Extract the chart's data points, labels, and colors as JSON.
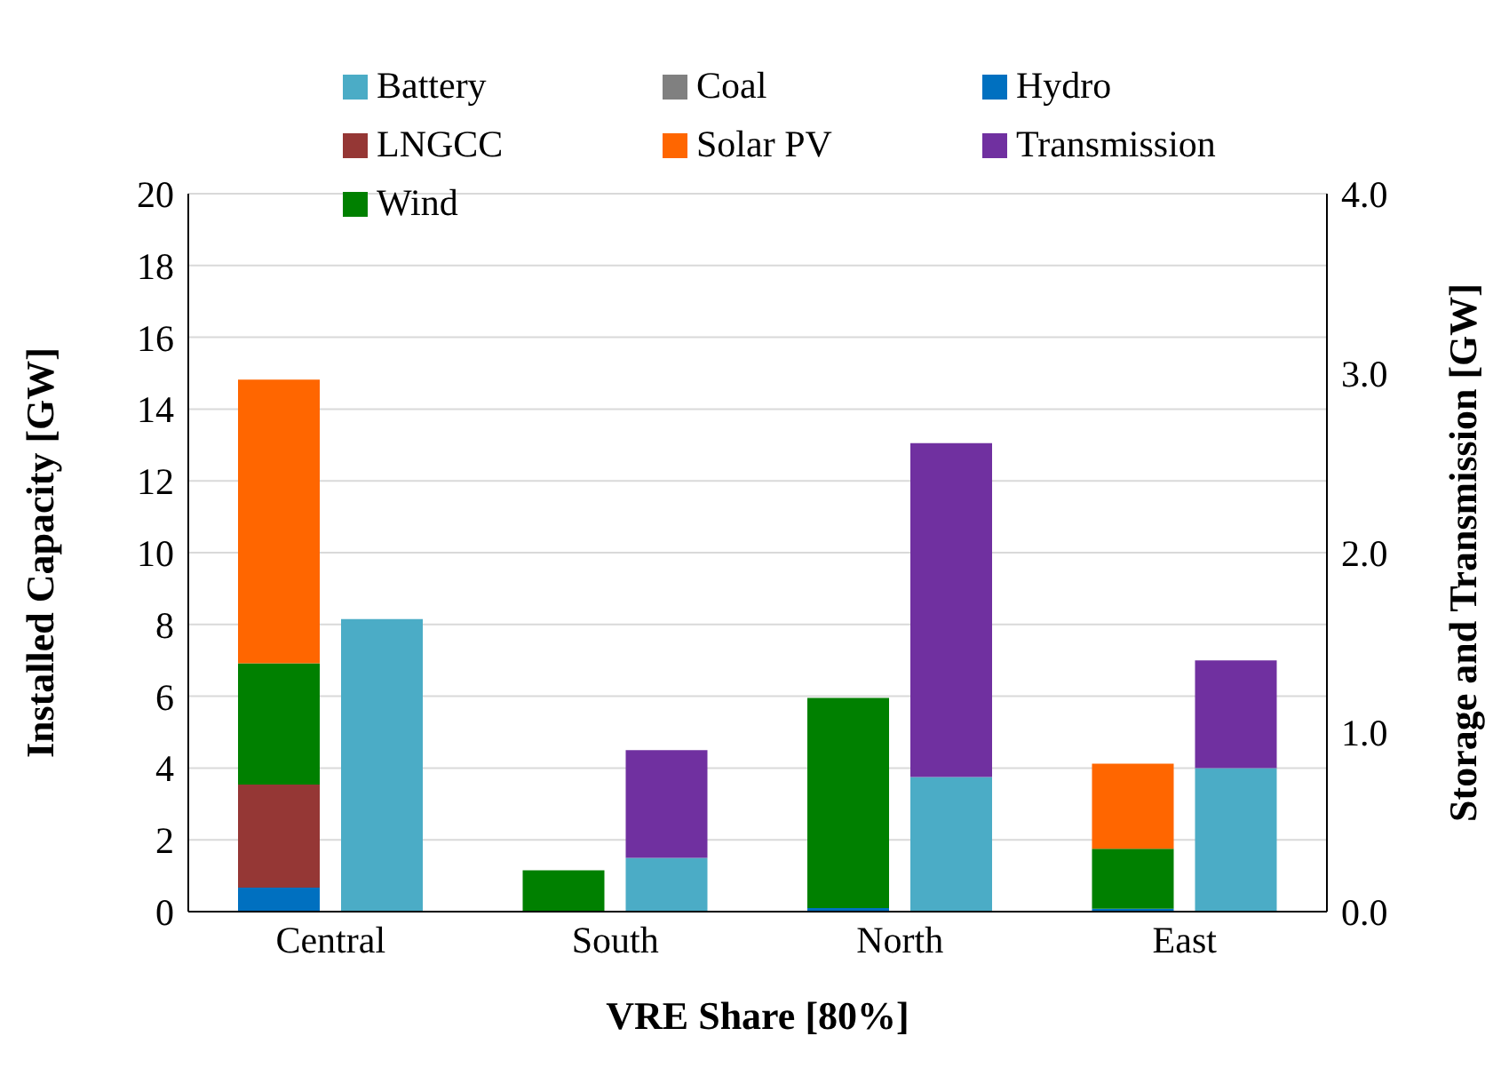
{
  "chart_data": {
    "type": "bar",
    "stacked": true,
    "xlabel": "VRE Share [80%]",
    "ylabel": "Installed Capacity [GW]",
    "y2label": "Storage and Transmission [GW]",
    "categories": [
      "Central",
      "South",
      "North",
      "East"
    ],
    "series": [
      {
        "name": "Hydro",
        "color": "#0070c0",
        "values": [
          0.67,
          0,
          0.1,
          0.08
        ]
      },
      {
        "name": "Coal",
        "color": "#808080",
        "values": [
          0,
          0,
          0,
          0
        ]
      },
      {
        "name": "LNGCC",
        "color": "#953735",
        "values": [
          2.87,
          0,
          0,
          0
        ]
      },
      {
        "name": "Wind",
        "color": "#008000",
        "values": [
          3.38,
          1.15,
          5.85,
          1.67
        ]
      },
      {
        "name": "Solar PV",
        "color": "#ff6600",
        "values": [
          7.9,
          0,
          0,
          2.37
        ]
      },
      {
        "name": "Battery",
        "color": "#4bacc6",
        "axis": "y2",
        "values": [
          1.63,
          0.3,
          0.75,
          0.8
        ]
      },
      {
        "name": "Transmission",
        "color": "#7030a0",
        "axis": "y2",
        "values": [
          0,
          0.6,
          1.86,
          0.6
        ]
      }
    ],
    "ylim": [
      0,
      20
    ],
    "yticks": [
      0,
      2,
      4,
      6,
      8,
      10,
      12,
      14,
      16,
      18,
      20
    ],
    "y2lim": [
      0,
      4
    ],
    "y2ticks": [
      {
        "value": 0,
        "label": "0.0"
      },
      {
        "value": 1,
        "label": "1.0"
      },
      {
        "value": 2,
        "label": "2.0"
      },
      {
        "value": 3,
        "label": "3.0"
      },
      {
        "value": 4,
        "label": "4.0"
      }
    ],
    "grid": "y",
    "legend": "top"
  }
}
